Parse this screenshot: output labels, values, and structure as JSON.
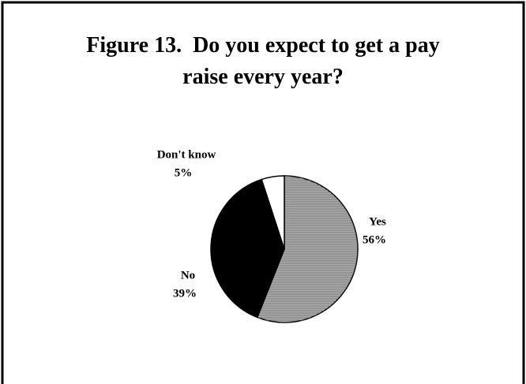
{
  "chart_data": {
    "type": "pie",
    "title": "Figure 13.  Do you expect to get a pay raise every year?",
    "categories": [
      "Yes",
      "No",
      "Don't know"
    ],
    "values": [
      56,
      39,
      5
    ],
    "value_labels": [
      "56%",
      "39%",
      "5%"
    ],
    "colors": [
      "#a8a8a8",
      "#000000",
      "#ffffff"
    ]
  }
}
